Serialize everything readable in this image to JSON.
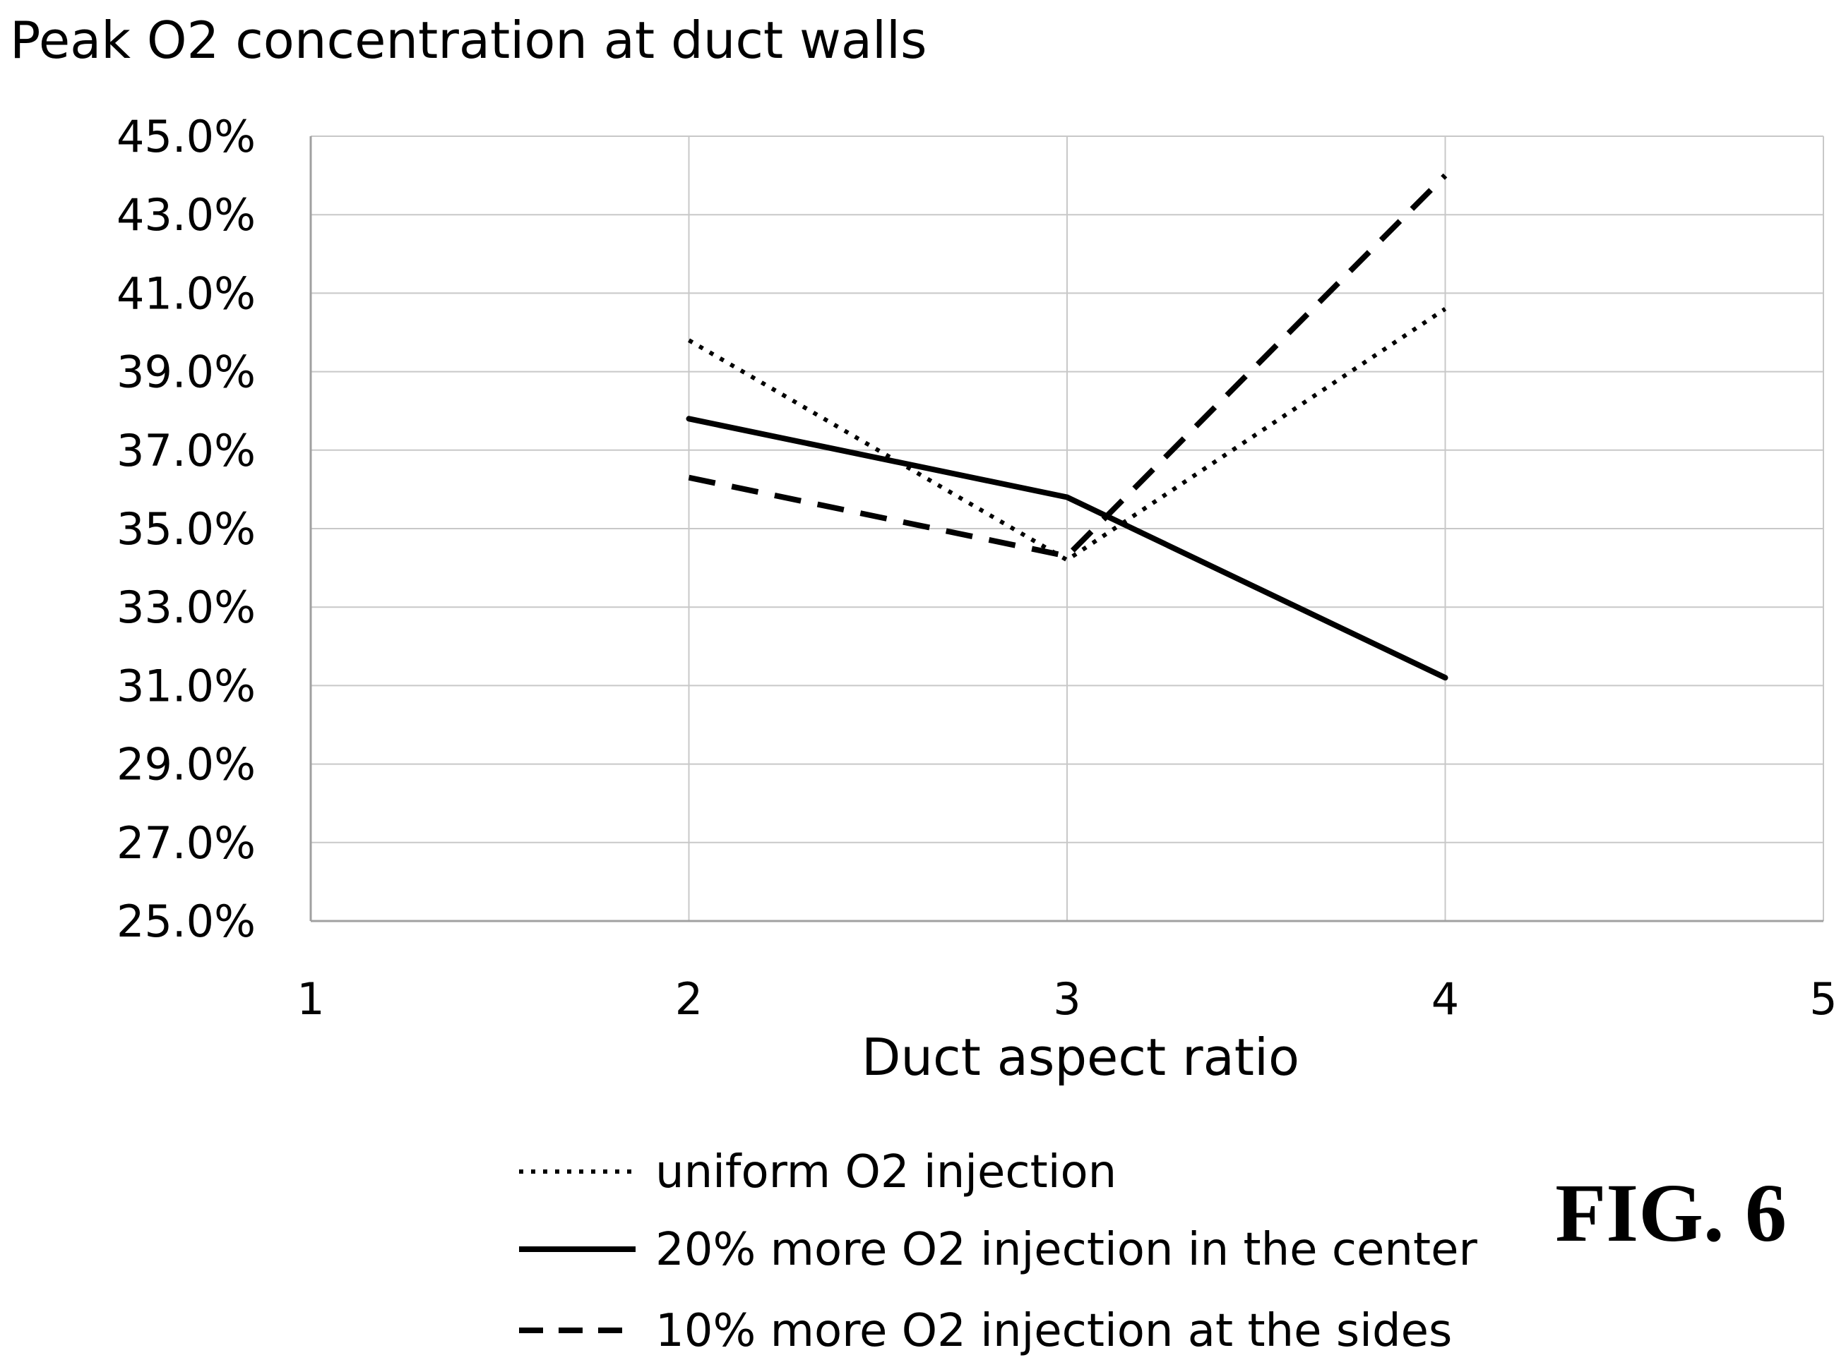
{
  "chart_data": {
    "type": "line",
    "title": "Peak O2 concentration at duct walls",
    "xlabel": "Duct aspect ratio",
    "ylabel": "",
    "xlim": [
      1,
      5
    ],
    "ylim": [
      0.25,
      0.45
    ],
    "x_ticks": [
      "1",
      "2",
      "3",
      "4",
      "5"
    ],
    "y_ticks": [
      "25.0%",
      "27.0%",
      "29.0%",
      "31.0%",
      "33.0%",
      "35.0%",
      "37.0%",
      "39.0%",
      "41.0%",
      "43.0%",
      "45.0%"
    ],
    "grid": true,
    "legend_position": "bottom",
    "series": [
      {
        "name": "uniform O2 injection",
        "line_style": "dotted",
        "color": "#000000",
        "x": [
          2,
          3,
          4
        ],
        "values": [
          0.398,
          0.342,
          0.406
        ]
      },
      {
        "name": "20% more O2 injection in the center",
        "line_style": "solid",
        "color": "#000000",
        "x": [
          2,
          3,
          4
        ],
        "values": [
          0.378,
          0.358,
          0.312
        ]
      },
      {
        "name": "10% more O2 injection at the sides",
        "line_style": "dashed",
        "color": "#000000",
        "x": [
          2,
          3,
          4
        ],
        "values": [
          0.363,
          0.343,
          0.44
        ]
      }
    ]
  },
  "figure_label": "FIG. 6"
}
